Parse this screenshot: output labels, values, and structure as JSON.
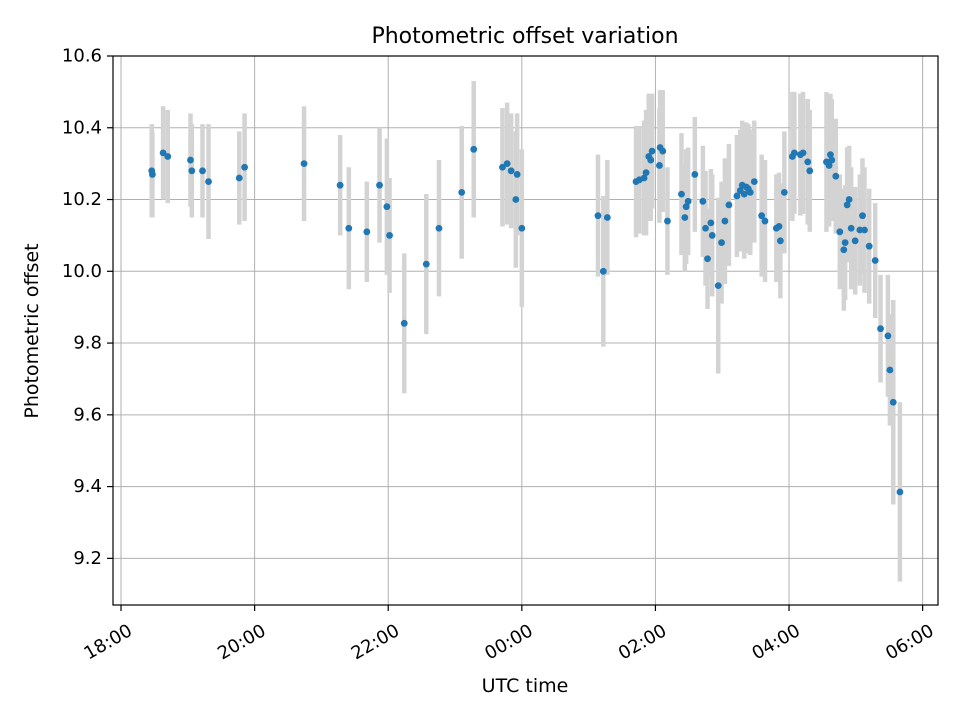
{
  "chart_data": {
    "type": "scatter",
    "title": "Photometric offset variation",
    "xlabel": "UTC time",
    "ylabel": "Photometric offset",
    "x_unit": "hours",
    "xlim": [
      17.88,
      30.23
    ],
    "ylim": [
      9.07,
      10.6
    ],
    "x_ticks": [
      {
        "value": 18,
        "label": "18:00"
      },
      {
        "value": 20,
        "label": "20:00"
      },
      {
        "value": 22,
        "label": "22:00"
      },
      {
        "value": 24,
        "label": "00:00"
      },
      {
        "value": 26,
        "label": "02:00"
      },
      {
        "value": 28,
        "label": "04:00"
      },
      {
        "value": 30,
        "label": "06:00"
      }
    ],
    "y_ticks": [
      {
        "value": 9.2,
        "label": "9.2"
      },
      {
        "value": 9.4,
        "label": "9.4"
      },
      {
        "value": 9.6,
        "label": "9.6"
      },
      {
        "value": 9.8,
        "label": "9.8"
      },
      {
        "value": 10.0,
        "label": "10.0"
      },
      {
        "value": 10.2,
        "label": "10.2"
      },
      {
        "value": 10.4,
        "label": "10.4"
      },
      {
        "value": 10.6,
        "label": "10.6"
      }
    ],
    "grid": true,
    "series": [
      {
        "marker_color": "#1f77b4",
        "errorbar_color": "#d3d3d3",
        "points": [
          [
            18.46,
            10.28,
            0.13
          ],
          [
            18.47,
            10.27,
            0.12
          ],
          [
            18.63,
            10.33,
            0.13
          ],
          [
            18.7,
            10.32,
            0.13
          ],
          [
            19.04,
            10.31,
            0.13
          ],
          [
            19.06,
            10.28,
            0.13
          ],
          [
            19.22,
            10.28,
            0.13
          ],
          [
            19.31,
            10.25,
            0.16
          ],
          [
            19.77,
            10.26,
            0.13
          ],
          [
            19.85,
            10.29,
            0.15
          ],
          [
            20.74,
            10.3,
            0.16
          ],
          [
            21.28,
            10.24,
            0.14
          ],
          [
            21.41,
            10.12,
            0.17
          ],
          [
            21.68,
            10.11,
            0.14
          ],
          [
            21.87,
            10.24,
            0.16
          ],
          [
            21.98,
            10.18,
            0.19
          ],
          [
            22.02,
            10.1,
            0.16
          ],
          [
            22.24,
            9.855,
            0.195
          ],
          [
            22.57,
            10.02,
            0.195
          ],
          [
            22.76,
            10.12,
            0.19
          ],
          [
            23.1,
            10.22,
            0.185
          ],
          [
            23.28,
            10.34,
            0.19
          ],
          [
            23.71,
            10.29,
            0.165
          ],
          [
            23.78,
            10.3,
            0.17
          ],
          [
            23.84,
            10.28,
            0.16
          ],
          [
            23.91,
            10.2,
            0.19
          ],
          [
            23.93,
            10.27,
            0.17
          ],
          [
            24.0,
            10.12,
            0.22
          ],
          [
            25.14,
            10.155,
            0.17
          ],
          [
            25.22,
            10.0,
            0.21
          ],
          [
            25.28,
            10.15,
            0.16
          ],
          [
            25.71,
            10.25,
            0.155
          ],
          [
            25.76,
            10.255,
            0.15
          ],
          [
            25.83,
            10.26,
            0.16
          ],
          [
            25.86,
            10.275,
            0.175
          ],
          [
            25.9,
            10.32,
            0.175
          ],
          [
            25.93,
            10.31,
            0.17
          ],
          [
            25.95,
            10.335,
            0.16
          ],
          [
            26.06,
            10.295,
            0.16
          ],
          [
            26.07,
            10.345,
            0.16
          ],
          [
            26.11,
            10.335,
            0.17
          ],
          [
            26.18,
            10.14,
            0.15
          ],
          [
            26.39,
            10.215,
            0.17
          ],
          [
            26.44,
            10.15,
            0.15
          ],
          [
            26.46,
            10.18,
            0.16
          ],
          [
            26.49,
            10.195,
            0.15
          ],
          [
            26.59,
            10.27,
            0.16
          ],
          [
            26.71,
            10.195,
            0.155
          ],
          [
            26.75,
            10.12,
            0.16
          ],
          [
            26.78,
            10.035,
            0.14
          ],
          [
            26.83,
            10.135,
            0.15
          ],
          [
            26.85,
            10.1,
            0.17
          ],
          [
            26.94,
            9.96,
            0.245
          ],
          [
            26.99,
            10.08,
            0.17
          ],
          [
            27.04,
            10.14,
            0.175
          ],
          [
            27.1,
            10.185,
            0.17
          ],
          [
            27.22,
            10.21,
            0.17
          ],
          [
            27.27,
            10.225,
            0.17
          ],
          [
            27.3,
            10.24,
            0.18
          ],
          [
            27.33,
            10.215,
            0.18
          ],
          [
            27.36,
            10.235,
            0.18
          ],
          [
            27.39,
            10.23,
            0.18
          ],
          [
            27.42,
            10.22,
            0.175
          ],
          [
            27.48,
            10.25,
            0.17
          ],
          [
            27.59,
            10.155,
            0.17
          ],
          [
            27.64,
            10.14,
            0.17
          ],
          [
            27.81,
            10.12,
            0.15
          ],
          [
            27.85,
            10.125,
            0.15
          ],
          [
            27.87,
            10.085,
            0.16
          ],
          [
            27.93,
            10.22,
            0.17
          ],
          [
            28.05,
            10.32,
            0.18
          ],
          [
            28.08,
            10.33,
            0.17
          ],
          [
            28.17,
            10.325,
            0.17
          ],
          [
            28.21,
            10.33,
            0.17
          ],
          [
            28.28,
            10.305,
            0.175
          ],
          [
            28.31,
            10.28,
            0.17
          ],
          [
            28.56,
            10.305,
            0.195
          ],
          [
            28.6,
            10.295,
            0.17
          ],
          [
            28.62,
            10.325,
            0.17
          ],
          [
            28.64,
            10.31,
            0.17
          ],
          [
            28.7,
            10.265,
            0.16
          ],
          [
            28.76,
            10.11,
            0.16
          ],
          [
            28.82,
            10.06,
            0.17
          ],
          [
            28.84,
            10.08,
            0.16
          ],
          [
            28.87,
            10.185,
            0.16
          ],
          [
            28.9,
            10.2,
            0.15
          ],
          [
            28.93,
            10.12,
            0.17
          ],
          [
            28.99,
            10.085,
            0.15
          ],
          [
            29.06,
            10.115,
            0.155
          ],
          [
            29.1,
            10.155,
            0.16
          ],
          [
            29.13,
            10.115,
            0.175
          ],
          [
            29.2,
            10.07,
            0.16
          ],
          [
            29.29,
            10.03,
            0.16
          ],
          [
            29.37,
            9.84,
            0.15
          ],
          [
            29.48,
            9.82,
            0.17
          ],
          [
            29.51,
            9.725,
            0.155
          ],
          [
            29.56,
            9.635,
            0.285
          ],
          [
            29.66,
            9.385,
            0.25
          ]
        ]
      }
    ]
  }
}
